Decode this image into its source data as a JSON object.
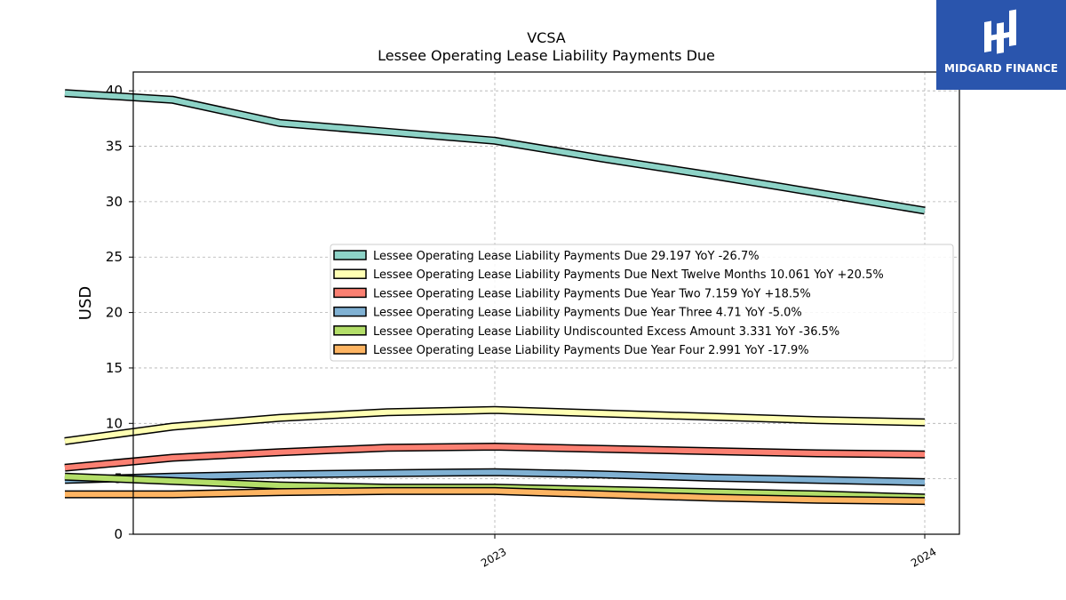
{
  "chart_data": {
    "type": "line",
    "title": "VCSA",
    "subtitle": "Lessee Operating Lease Liability Payments Due",
    "ylabel": "USD",
    "xlabel": "",
    "ylim": [
      0,
      41.7
    ],
    "yticks": [
      0,
      5,
      10,
      15,
      20,
      25,
      30,
      35,
      40
    ],
    "xticks": [
      "2023",
      "2024"
    ],
    "grid": true,
    "legend_position": "center-right",
    "x": [
      "2022-01",
      "2022-04",
      "2022-07",
      "2022-10",
      "2023-01",
      "2023-04",
      "2023-07",
      "2023-10",
      "2024-01"
    ],
    "series": [
      {
        "name": "Lessee Operating Lease Liability Payments Due  29.197 YoY -26.7%",
        "color": "#8dd3c7",
        "values": [
          39.8,
          39.2,
          37.1,
          36.3,
          35.5,
          33.9,
          32.4,
          30.8,
          29.2
        ]
      },
      {
        "name": "Lessee Operating Lease Liability Payments Due Next Twelve Months  10.061 YoY +20.5%",
        "color": "#ffffb3",
        "values": [
          8.4,
          9.7,
          10.5,
          11.0,
          11.2,
          10.9,
          10.6,
          10.3,
          10.1
        ]
      },
      {
        "name": "Lessee Operating Lease Liability Payments Due Year Two  7.159 YoY +18.5%",
        "color": "#fb8072",
        "values": [
          6.0,
          6.9,
          7.4,
          7.8,
          7.9,
          7.7,
          7.5,
          7.3,
          7.2
        ]
      },
      {
        "name": "Lessee Operating Lease Liability Payments Due Year Three  4.71 YoY -5.0%",
        "color": "#80b1d3",
        "values": [
          4.9,
          5.2,
          5.4,
          5.5,
          5.6,
          5.4,
          5.1,
          4.9,
          4.7
        ]
      },
      {
        "name": "Lessee Operating Lease Liability Undiscounted Excess Amount  3.331 YoY -36.5%",
        "color": "#b3de69",
        "values": [
          5.2,
          4.8,
          4.4,
          4.2,
          4.2,
          4.0,
          3.8,
          3.6,
          3.3
        ]
      },
      {
        "name": "Lessee Operating Lease Liability Payments Due Year Four  2.991 YoY -17.9%",
        "color": "#fdb462",
        "values": [
          3.6,
          3.6,
          3.8,
          3.9,
          3.9,
          3.6,
          3.3,
          3.1,
          3.0
        ]
      }
    ]
  },
  "logo": {
    "text": "MIDGARD FINANCE"
  }
}
